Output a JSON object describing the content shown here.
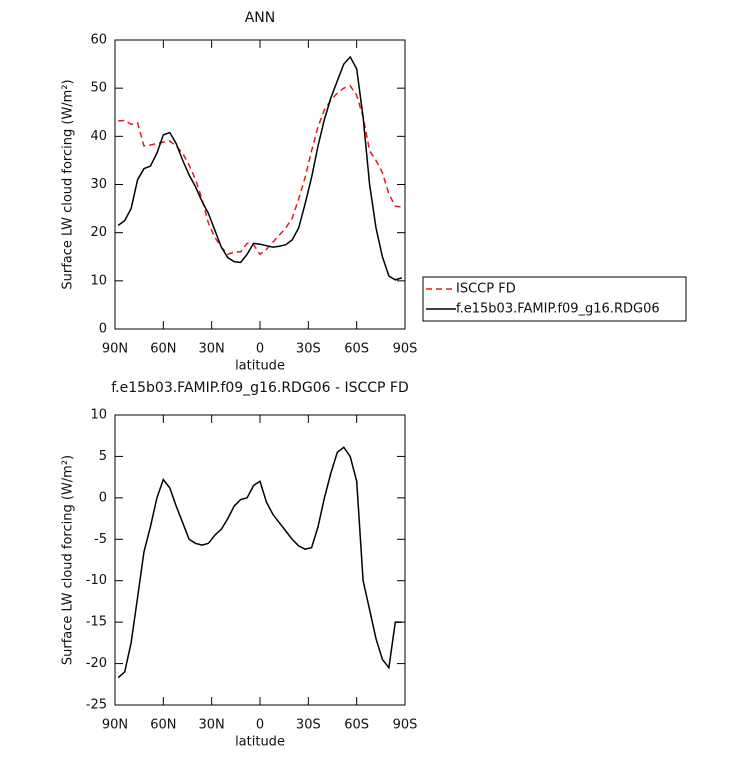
{
  "chart_data": [
    {
      "type": "line",
      "title": "ANN",
      "x_label": "latitude",
      "y_label": "Surface LW cloud forcing (W/m²)",
      "x": [
        88,
        84,
        80,
        76,
        72,
        68,
        64,
        60,
        56,
        52,
        48,
        44,
        40,
        36,
        32,
        28,
        24,
        20,
        16,
        12,
        8,
        4,
        0,
        -4,
        -8,
        -12,
        -16,
        -20,
        -24,
        -28,
        -32,
        -36,
        -40,
        -44,
        -48,
        -52,
        -56,
        -60,
        -64,
        -68,
        -72,
        -76,
        -80,
        -84,
        -88
      ],
      "xlim": [
        90,
        -90
      ],
      "xticks": [
        {
          "value": 90,
          "label": "90N"
        },
        {
          "value": 60,
          "label": "60N"
        },
        {
          "value": 30,
          "label": "30N"
        },
        0,
        {
          "value": -30,
          "label": "30S"
        },
        {
          "value": -60,
          "label": "60S"
        },
        {
          "value": -90,
          "label": "90S"
        }
      ],
      "ylim": [
        0,
        60
      ],
      "yticks": [
        0,
        10,
        20,
        30,
        40,
        50,
        60
      ],
      "legend": "right",
      "series": [
        {
          "name": "ISCCP FD",
          "color": "#e41a1c",
          "line_style": "dashed",
          "values": [
            43.2,
            43.3,
            42.5,
            42.8,
            38,
            38.2,
            38.5,
            38.8,
            39,
            38,
            36.5,
            34,
            31,
            27,
            22,
            19,
            17,
            15.5,
            16,
            16,
            17.8,
            17.5,
            15.5,
            16.5,
            18,
            19.5,
            21,
            23,
            27,
            31.5,
            37,
            42,
            45.5,
            47.5,
            49,
            50,
            50.5,
            48.5,
            44,
            37,
            35,
            32.5,
            28,
            25.5,
            25.3
          ]
        },
        {
          "name": "f.e15b03.FAMIP.f09_g16.RDG06",
          "color": "#000000",
          "line_style": "solid",
          "values": [
            21.5,
            22.5,
            25,
            31,
            33.3,
            33.8,
            36.5,
            40.3,
            40.8,
            38.5,
            35,
            32,
            29.5,
            26.5,
            24,
            20.5,
            17,
            14.8,
            14,
            13.8,
            15.5,
            17.8,
            17.6,
            17.3,
            17,
            17.2,
            17.5,
            18.5,
            21,
            26,
            31.5,
            38,
            43.5,
            48,
            51.5,
            55,
            56.5,
            54,
            44,
            30,
            21,
            15,
            11,
            10.2,
            10.6
          ]
        }
      ]
    },
    {
      "type": "line",
      "title": "f.e15b03.FAMIP.f09_g16.RDG06 - ISCCP FD",
      "x_label": "latitude",
      "y_label": "Surface LW cloud forcing (W/m²)",
      "x": [
        88,
        84,
        80,
        76,
        72,
        68,
        64,
        60,
        56,
        52,
        48,
        44,
        40,
        36,
        32,
        28,
        24,
        20,
        16,
        12,
        8,
        4,
        0,
        -4,
        -8,
        -12,
        -16,
        -20,
        -24,
        -28,
        -32,
        -36,
        -40,
        -44,
        -48,
        -52,
        -56,
        -60,
        -64,
        -68,
        -72,
        -76,
        -80,
        -84,
        -88
      ],
      "xlim": [
        90,
        -90
      ],
      "xticks": [
        {
          "value": 90,
          "label": "90N"
        },
        {
          "value": 60,
          "label": "60N"
        },
        {
          "value": 30,
          "label": "30N"
        },
        0,
        {
          "value": -30,
          "label": "30S"
        },
        {
          "value": -60,
          "label": "60S"
        },
        {
          "value": -90,
          "label": "90S"
        }
      ],
      "ylim": [
        -25,
        10
      ],
      "yticks": [
        -25,
        -20,
        -15,
        -10,
        -5,
        0,
        5,
        10
      ],
      "series": [
        {
          "color": "#000000",
          "line_style": "solid",
          "values": [
            -21.7,
            -21,
            -17.5,
            -12,
            -6.5,
            -3.5,
            0,
            2.2,
            1.2,
            -1,
            -3,
            -5,
            -5.5,
            -5.7,
            -5.5,
            -4.5,
            -3.8,
            -2.5,
            -1,
            -0.2,
            0,
            1.5,
            2,
            -0.5,
            -2,
            -3,
            -4,
            -5,
            -5.8,
            -6.2,
            -6,
            -3.5,
            0,
            3,
            5.5,
            6.1,
            5,
            2,
            -10,
            -13.5,
            -17,
            -19.5,
            -20.5,
            -15,
            -15
          ]
        }
      ]
    }
  ]
}
